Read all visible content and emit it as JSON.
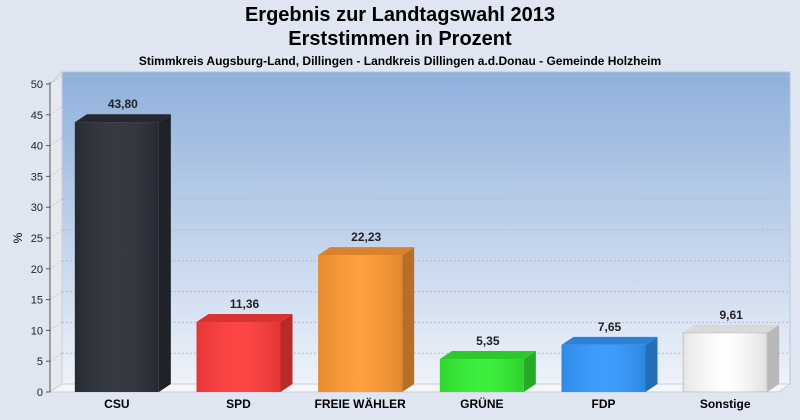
{
  "chart_data": {
    "type": "bar",
    "title": "Ergebnis zur Landtagswahl 2013",
    "subtitle": "Erststimmen in Prozent",
    "subsubtitle": "Stimmkreis Augsburg-Land, Dillingen - Landkreis Dillingen a.d.Donau - Gemeinde Holzheim",
    "ylabel": "%",
    "ylim": [
      0,
      50
    ],
    "yticks": [
      "0",
      "5",
      "10",
      "15",
      "20",
      "25",
      "30",
      "35",
      "40",
      "45",
      "50"
    ],
    "categories": [
      "CSU",
      "SPD",
      "FREIE WÄHLER",
      "GRÜNE",
      "FDP",
      "Sonstige"
    ],
    "values": [
      43.8,
      11.36,
      22.23,
      5.35,
      7.65,
      9.61
    ],
    "value_labels": [
      "43,80",
      "11,36",
      "22,23",
      "5,35",
      "7,65",
      "9,61"
    ],
    "colors": [
      "#2b2f38",
      "#ff3b3b",
      "#ff9933",
      "#33ee33",
      "#3399ff",
      "#ffffff"
    ],
    "grid": true
  }
}
